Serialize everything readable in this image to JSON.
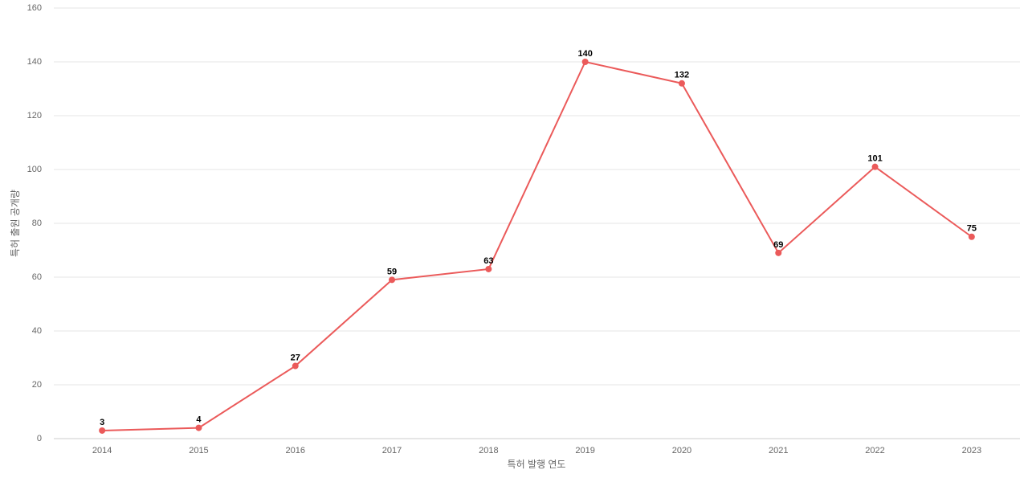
{
  "chart_data": {
    "type": "line",
    "x_label": "특허 발행 연도",
    "y_label": "특허 출원 공개량",
    "categories": [
      "2014",
      "2015",
      "2016",
      "2017",
      "2018",
      "2019",
      "2020",
      "2021",
      "2022",
      "2023"
    ],
    "values": [
      3,
      4,
      27,
      59,
      63,
      140,
      132,
      69,
      101,
      75
    ],
    "color": "#eb5a5a",
    "ylim": [
      0,
      160
    ],
    "yticks": [
      0,
      20,
      40,
      60,
      80,
      100,
      120,
      140,
      160
    ],
    "grid": true
  }
}
